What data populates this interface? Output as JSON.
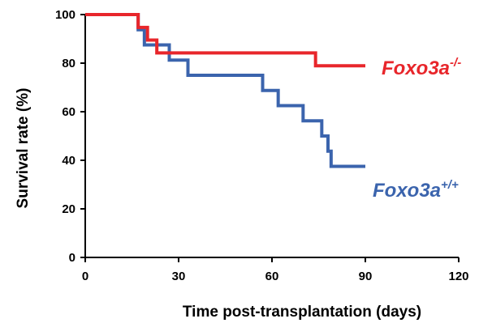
{
  "chart_data": {
    "type": "line",
    "step": true,
    "xlabel": "Time post-transplantation (days)",
    "ylabel": "Survival rate (%)",
    "xlim": [
      0,
      120
    ],
    "ylim": [
      0,
      100
    ],
    "x_ticks": [
      "0",
      "30",
      "60",
      "90",
      "120"
    ],
    "y_ticks": [
      "0",
      "20",
      "40",
      "60",
      "80",
      "100"
    ],
    "grid": false,
    "series": [
      {
        "name": "Foxo3a",
        "superscript": "-/-",
        "color": "#e8262b",
        "x": [
          0,
          17,
          20,
          23,
          74,
          90
        ],
        "y": [
          100,
          94.7,
          89.5,
          84.2,
          78.9,
          78.9
        ]
      },
      {
        "name": "Foxo3a",
        "superscript": "+/+",
        "color": "#3b64ad",
        "x": [
          0,
          17,
          19,
          27,
          33,
          57,
          62,
          70,
          76,
          78,
          79,
          90
        ],
        "y": [
          100,
          93.75,
          87.5,
          81.25,
          75,
          68.75,
          62.5,
          56.25,
          50,
          43.75,
          37.5,
          37.5
        ]
      }
    ]
  }
}
